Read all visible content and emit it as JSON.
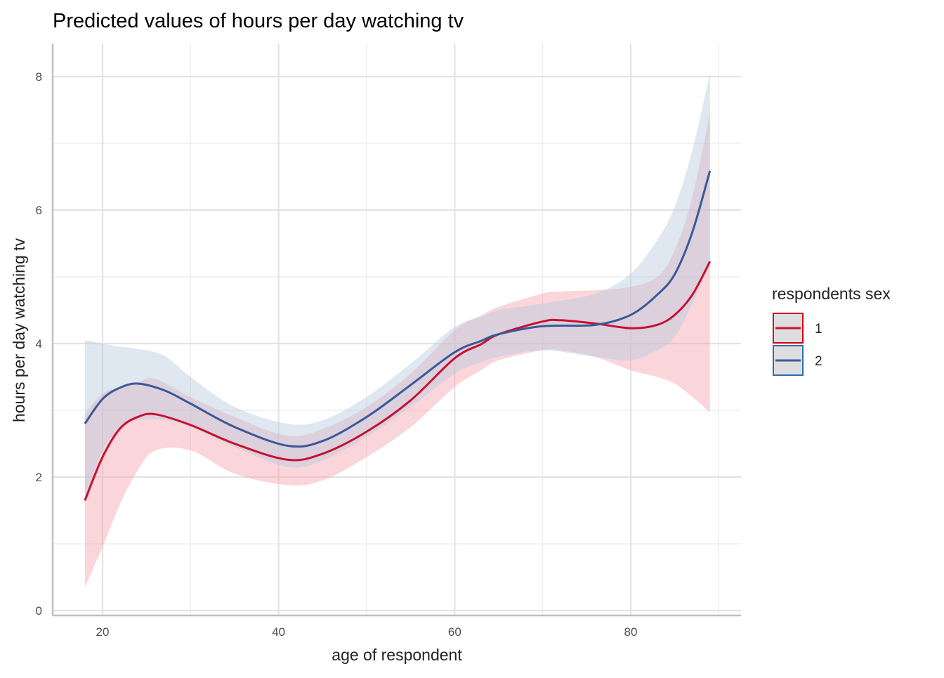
{
  "chart_data": {
    "type": "line",
    "title": "Predicted values of hours per day watching tv",
    "xlabel": "age of respondent",
    "ylabel": "hours per day watching tv",
    "xlim": [
      14.5,
      91.5
    ],
    "ylim": [
      -0.1,
      8.5
    ],
    "x_ticks": [
      20,
      40,
      60,
      80
    ],
    "x_tick_labels": [
      "20",
      "40",
      "60",
      "80"
    ],
    "x_minor": [
      30,
      50,
      70,
      90
    ],
    "y_ticks": [
      0,
      2,
      4,
      6,
      8
    ],
    "y_tick_labels": [
      "0",
      "2",
      "4",
      "6",
      "8"
    ],
    "y_minor": [
      1,
      3,
      5,
      7
    ],
    "grid": true,
    "legend": {
      "title": "respondents sex",
      "position": "right"
    },
    "series": [
      {
        "name": "1",
        "color": "#c8102e",
        "fill": "#f4a5ae",
        "x": [
          18,
          20,
          22,
          24,
          26,
          30,
          35,
          41,
          45,
          50,
          55,
          60,
          63,
          65,
          70,
          72,
          76,
          80,
          83,
          85,
          87,
          89
        ],
        "y": [
          1.65,
          2.3,
          2.73,
          2.9,
          2.94,
          2.78,
          2.5,
          2.26,
          2.35,
          2.68,
          3.15,
          3.78,
          3.99,
          4.14,
          4.33,
          4.35,
          4.3,
          4.23,
          4.28,
          4.43,
          4.73,
          5.23
        ],
        "lower": [
          0.35,
          0.95,
          1.6,
          2.1,
          2.4,
          2.4,
          2.05,
          1.88,
          1.95,
          2.3,
          2.75,
          3.35,
          3.6,
          3.75,
          3.9,
          3.9,
          3.8,
          3.6,
          3.5,
          3.4,
          3.2,
          2.97
        ],
        "upper": [
          2.95,
          3.25,
          3.35,
          3.42,
          3.47,
          3.2,
          2.9,
          2.62,
          2.72,
          3.05,
          3.55,
          4.2,
          4.42,
          4.55,
          4.75,
          4.78,
          4.8,
          4.85,
          5.0,
          5.4,
          6.2,
          7.45
        ]
      },
      {
        "name": "2",
        "color": "#3a5998",
        "fill": "#b8c9e0",
        "x": [
          18,
          20,
          22,
          24,
          27,
          30,
          35,
          41,
          45,
          50,
          55,
          60,
          63,
          65,
          70,
          76,
          80,
          83,
          85,
          87,
          89
        ],
        "y": [
          2.8,
          3.17,
          3.34,
          3.4,
          3.3,
          3.1,
          2.75,
          2.47,
          2.54,
          2.9,
          3.38,
          3.87,
          4.04,
          4.14,
          4.26,
          4.28,
          4.43,
          4.73,
          5.04,
          5.67,
          6.59
        ],
        "lower": [
          1.6,
          2.4,
          2.7,
          2.85,
          2.85,
          2.75,
          2.45,
          2.15,
          2.25,
          2.6,
          3.05,
          3.55,
          3.72,
          3.8,
          3.9,
          3.8,
          3.75,
          3.9,
          4.1,
          4.6,
          5.2
        ],
        "upper": [
          4.05,
          4.0,
          3.95,
          3.92,
          3.82,
          3.5,
          3.05,
          2.8,
          2.85,
          3.2,
          3.7,
          4.25,
          4.4,
          4.5,
          4.6,
          4.75,
          5.05,
          5.55,
          6.05,
          6.9,
          8.05
        ]
      }
    ]
  }
}
